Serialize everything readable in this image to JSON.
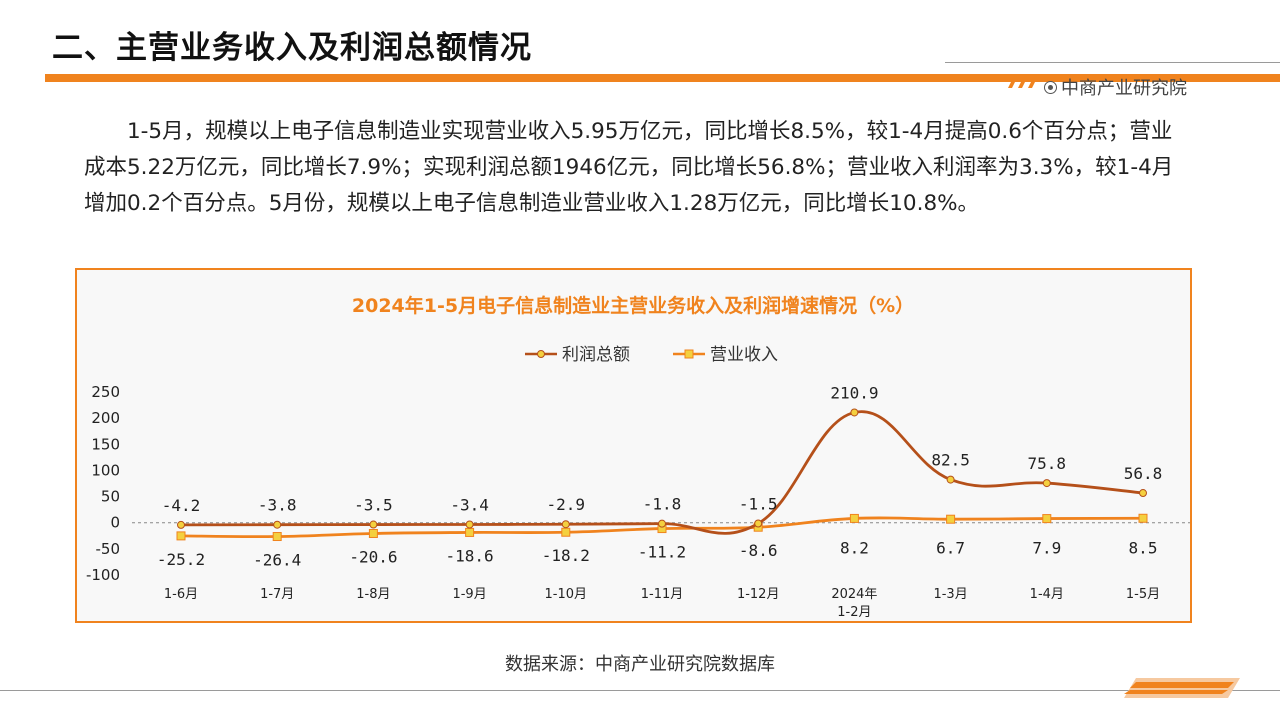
{
  "header": {
    "title": "二、主营业务收入及利润总额情况",
    "brand": "中商产业研究院",
    "accent_color": "#f0831e"
  },
  "body": {
    "paragraph": "1-5月，规模以上电子信息制造业实现营业收入5.95万亿元，同比增长8.5%，较1-4月提高0.6个百分点；营业成本5.22万亿元，同比增长7.9%；实现利润总额1946亿元，同比增长56.8%；营业收入利润率为3.3%，较1-4月增加0.2个百分点。5月份，规模以上电子信息制造业营业收入1.28万亿元，同比增长10.8%。"
  },
  "chart_data": {
    "type": "line",
    "title": "2024年1-5月电子信息制造业主营业务收入及利润增速情况（%）",
    "categories": [
      "1-6月",
      "1-7月",
      "1-8月",
      "1-9月",
      "1-10月",
      "1-11月",
      "1-12月",
      "2024年 1-2月",
      "1-3月",
      "1-4月",
      "1-5月"
    ],
    "series": [
      {
        "name": "营业收入",
        "values": [
          -25.2,
          -26.4,
          -20.6,
          -18.6,
          -18.2,
          -11.2,
          -8.6,
          8.2,
          6.7,
          7.9,
          8.5
        ],
        "color": "#f0831e",
        "marker": "square",
        "label_position": "below"
      },
      {
        "name": "利润总额",
        "values": [
          -4.2,
          -3.8,
          -3.5,
          -3.4,
          -2.9,
          -1.8,
          -1.5,
          210.9,
          82.5,
          75.8,
          56.8
        ],
        "color": "#b5501a",
        "marker": "circle",
        "label_position": "above"
      }
    ],
    "yticks": [
      250,
      200,
      150,
      100,
      50,
      0,
      -50,
      -100
    ],
    "ylim": [
      -100,
      250
    ],
    "legend_position": "top-center",
    "grid": false,
    "smooth": true
  },
  "footer": {
    "source": "数据来源：中商产业研究院数据库"
  }
}
